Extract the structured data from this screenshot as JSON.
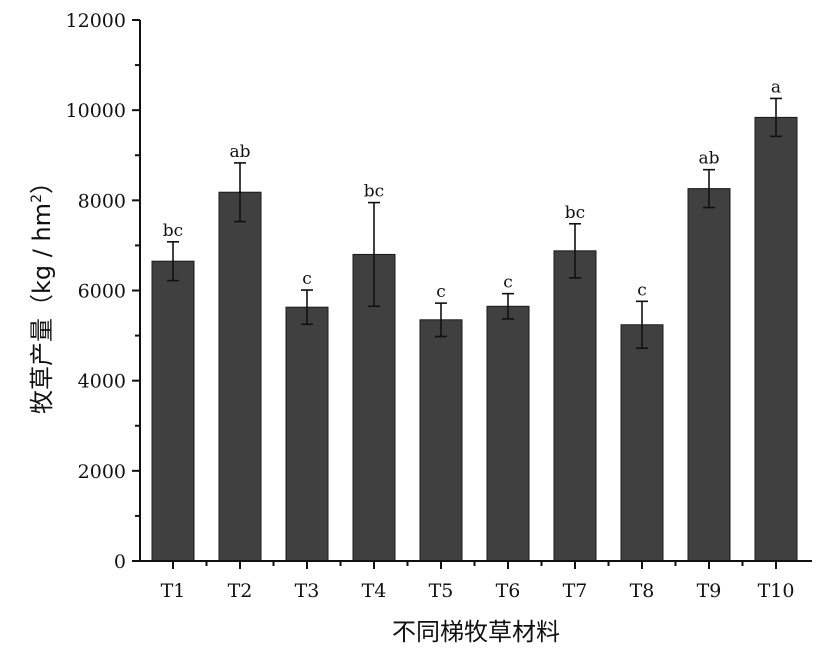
{
  "chart_data": {
    "type": "bar",
    "title": "",
    "xlabel": "不同梯牧草材料",
    "ylabel": "牧草产量（kg / hm²）",
    "ylabel_main": "牧草产量（kg / hm",
    "ylabel_sup": "2",
    "ylabel_close": "）",
    "ylim": [
      0,
      12000
    ],
    "yticks": [
      0,
      2000,
      4000,
      6000,
      8000,
      10000,
      12000
    ],
    "categories": [
      "T1",
      "T2",
      "T3",
      "T4",
      "T5",
      "T6",
      "T7",
      "T8",
      "T9",
      "T10"
    ],
    "values": [
      6650,
      8180,
      5630,
      6800,
      5350,
      5650,
      6880,
      5240,
      8260,
      9840
    ],
    "errors": [
      430,
      650,
      380,
      1150,
      370,
      280,
      600,
      520,
      420,
      420
    ],
    "significance": [
      "bc",
      "ab",
      "c",
      "bc",
      "c",
      "c",
      "bc",
      "c",
      "ab",
      "a"
    ],
    "bar_color": "#404040",
    "grid": false
  }
}
